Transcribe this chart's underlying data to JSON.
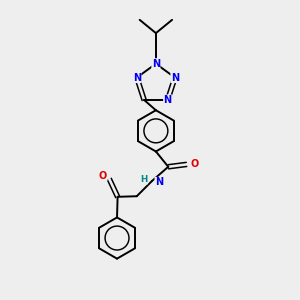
{
  "bg_color": "#eeeeee",
  "bond_color": "#000000",
  "nitrogen_color": "#0000ee",
  "oxygen_color": "#dd0000",
  "nh_color": "#008888",
  "fig_width": 3.0,
  "fig_height": 3.0,
  "dpi": 100,
  "lw": 1.4,
  "lw_double": 1.1,
  "font_size_atom": 7.0,
  "xlim": [
    0,
    10
  ],
  "ylim": [
    0,
    10
  ]
}
